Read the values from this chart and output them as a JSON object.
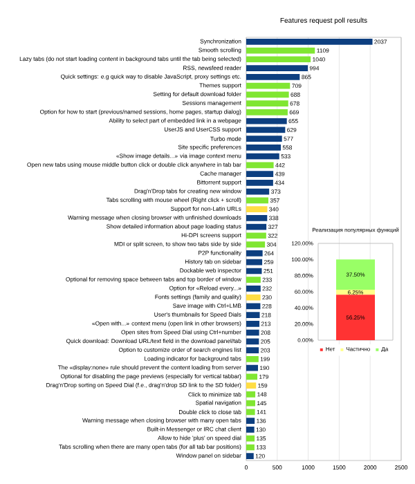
{
  "chart_data": [
    {
      "type": "bar",
      "orientation": "horizontal",
      "title": "Features request poll results",
      "categories": [
        "Synchronization",
        "Smooth scrolling",
        "Lazy tabs (do not start loading content in background tabs until the tab being selected)",
        "RSS, newsfeed reader",
        "Quick settings: e.g quick way to disable JavaScript, proxy settings etc.",
        "Themes support",
        "Setting for default download folder",
        "Sessions management",
        "Option for how to start (previous/named sessions, home pages, startup dialog)",
        "Ability to select part of embedded link in a webpage",
        "UserJS and UserCSS support",
        "Turbo mode",
        "Site specific preferences",
        "«Show image details...» via image context menu",
        "Open new tabs using mouse middle button click or double click anywhere in tab bar",
        "Cache manager",
        "Bittorrent support",
        "Drag'n'Drop tabs for creating new window",
        "Tabs scrolling with mouse wheel (Right click + scroll)",
        "Support for non-Latin URLs",
        "Warning message when closing browser with unfinished downloads",
        "Show detailed information about page loading status",
        "Hi-DPI screens support",
        "MDI or split screen, to show two tabs side by side",
        "P2P functionality",
        "History tab on sidebar",
        "Dockable web inspector",
        "Optional for removing space between tabs and top border of window",
        "Option for «Reload every...»",
        "Fonts settings (family and quality)",
        "Save image with Ctrl+LMB",
        "User's thumbnails for Speed Dials",
        "«Open with...» context menu (open link in other browsers)",
        "Open sites from Speed Dial using Ctrl+number",
        "Quick download: Download URL/text field in the download panel/tab",
        "Option to customize order of search engines list",
        "Loading indicator for background tabs",
        "The «display:none» rule should prevent the content loading from server",
        "Optional for disabling the page previews (especially for vertical tabbar)",
        "Drag'n'Drop sorting on Speed Dial (f.e., drag'n'drop SD link to the SD folder)",
        "Click to minimize tab",
        "Spatial navigation",
        "Double click to close tab",
        "Warning message when closing browser with many open tabs",
        "Built-in Messenger or IRC chat client",
        "Allow to hide 'plus' on speed dial",
        "Tabs scrolling when there are many open tabs (for all tab bar positions)",
        "Window panel on sidebar"
      ],
      "values": [
        2037,
        1109,
        1040,
        994,
        865,
        709,
        688,
        678,
        669,
        655,
        629,
        577,
        558,
        533,
        442,
        439,
        434,
        373,
        357,
        340,
        338,
        327,
        322,
        304,
        264,
        259,
        251,
        233,
        232,
        230,
        228,
        218,
        213,
        208,
        205,
        203,
        199,
        190,
        179,
        159,
        148,
        145,
        141,
        136,
        130,
        135,
        133,
        120
      ],
      "colors": [
        "#0d3f80",
        "#80e632",
        "#80e632",
        "#0d3f80",
        "#0d3f80",
        "#80e632",
        "#80e632",
        "#80e632",
        "#80e632",
        "#0d3f80",
        "#0d3f80",
        "#0d3f80",
        "#0d3f80",
        "#0d3f80",
        "#80e632",
        "#0d3f80",
        "#0d3f80",
        "#0d3f80",
        "#80e632",
        "#ffdd44",
        "#0d3f80",
        "#0d3f80",
        "#80e632",
        "#80e632",
        "#0d3f80",
        "#0d3f80",
        "#0d3f80",
        "#80e632",
        "#0d3f80",
        "#ffdd44",
        "#0d3f80",
        "#0d3f80",
        "#0d3f80",
        "#0d3f80",
        "#0d3f80",
        "#0d3f80",
        "#80e632",
        "#0d3f80",
        "#80e632",
        "#ffdd44",
        "#80e632",
        "#80e632",
        "#80e632",
        "#0d3f80",
        "#0d3f80",
        "#80e632",
        "#80e632",
        "#0d3f80"
      ],
      "xlim": [
        0,
        2500
      ],
      "xticks": [
        0,
        500,
        1000,
        1500,
        2000,
        2500
      ],
      "grid": "x",
      "data_labels": true
    },
    {
      "type": "bar",
      "stacked": true,
      "title": "Реализация популярных функций",
      "categories": [
        null
      ],
      "series": [
        {
          "name": "Нет",
          "color": "#ff3333",
          "values": [
            56.25
          ],
          "value_labels": [
            "56.25%"
          ]
        },
        {
          "name": "Частично",
          "color": "#ffff88",
          "values": [
            6.25
          ],
          "value_labels": [
            "6.25%"
          ]
        },
        {
          "name": "Да",
          "color": "#99ff66",
          "values": [
            37.5
          ],
          "value_labels": [
            "37.50%"
          ]
        }
      ],
      "ylim": [
        0,
        120
      ],
      "yticks": [
        {
          "value": 0,
          "label": "0.00%"
        },
        {
          "value": 20,
          "label": "20.00%"
        },
        {
          "value": 40,
          "label": "40.00%"
        },
        {
          "value": 60,
          "label": "60.00%"
        },
        {
          "value": 80,
          "label": "80.00%"
        },
        {
          "value": 100,
          "label": "100.00%"
        },
        {
          "value": 120,
          "label": "120.00%"
        }
      ],
      "legend": "bottom"
    }
  ]
}
